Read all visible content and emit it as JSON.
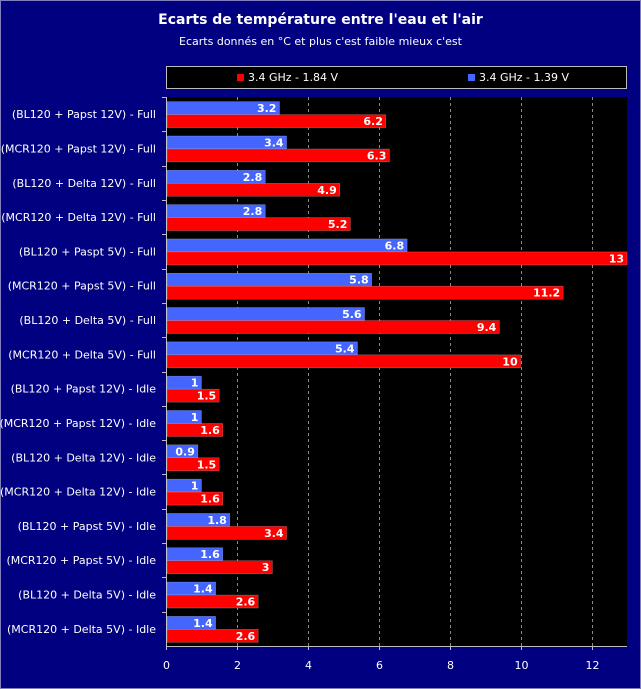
{
  "chart_data": {
    "type": "bar",
    "orientation": "horizontal",
    "title": "Ecarts de température entre l'eau et l'air",
    "subtitle": "Ecarts donnés en °C et plus c'est faible mieux c'est",
    "categories": [
      "(BL120 + Papst 12V) - Full",
      "(MCR120 + Papst 12V) - Full",
      "(BL120 + Delta 12V) - Full",
      "(MCR120 + Delta 12V) - Full",
      "(BL120 + Paspt 5V) - Full",
      "(MCR120 + Papst 5V) - Full",
      "(BL120 + Delta 5V) - Full",
      "(MCR120 + Delta 5V) - Full",
      "(BL120 + Papst 12V) - Idle",
      "(MCR120 + Papst 12V) - Idle",
      "(BL120 + Delta 12V) - Idle",
      "(MCR120 + Delta 12V) - Idle",
      "(BL120 + Papst 5V) - Idle",
      "(MCR120 + Papst 5V) - Idle",
      "(BL120 + Delta 5V) - Idle",
      "(MCR120 + Delta 5V) - Idle"
    ],
    "series": [
      {
        "name": "3.4 GHz - 1.39 V",
        "color": "#4466ff",
        "values": [
          3.2,
          3.4,
          2.8,
          2.8,
          6.8,
          5.8,
          5.6,
          5.4,
          1,
          1,
          0.9,
          1,
          1.8,
          1.6,
          1.4,
          1.4
        ]
      },
      {
        "name": "3.4 GHz - 1.84 V",
        "color": "#ff0000",
        "values": [
          6.2,
          6.3,
          4.9,
          5.2,
          13,
          11.2,
          9.4,
          10,
          1.5,
          1.6,
          1.5,
          1.6,
          3.4,
          3,
          2.6,
          2.6
        ]
      }
    ],
    "legend_order": [
      "3.4 GHz - 1.84 V",
      "3.4 GHz - 1.39 V"
    ],
    "legend_position": "top",
    "xlim": [
      0,
      13
    ],
    "xticks": [
      0,
      2,
      4,
      6,
      8,
      10,
      12
    ],
    "grid": true
  }
}
